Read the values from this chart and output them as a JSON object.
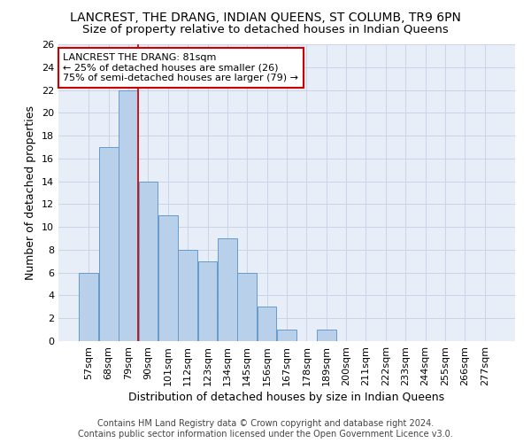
{
  "title": "LANCREST, THE DRANG, INDIAN QUEENS, ST COLUMB, TR9 6PN",
  "subtitle": "Size of property relative to detached houses in Indian Queens",
  "xlabel": "Distribution of detached houses by size in Indian Queens",
  "ylabel": "Number of detached properties",
  "footer_line1": "Contains HM Land Registry data © Crown copyright and database right 2024.",
  "footer_line2": "Contains public sector information licensed under the Open Government Licence v3.0.",
  "bar_labels": [
    "57sqm",
    "68sqm",
    "79sqm",
    "90sqm",
    "101sqm",
    "112sqm",
    "123sqm",
    "134sqm",
    "145sqm",
    "156sqm",
    "167sqm",
    "178sqm",
    "189sqm",
    "200sqm",
    "211sqm",
    "222sqm",
    "233sqm",
    "244sqm",
    "255sqm",
    "266sqm",
    "277sqm"
  ],
  "bar_values": [
    6,
    17,
    22,
    14,
    11,
    8,
    7,
    9,
    6,
    3,
    1,
    0,
    1,
    0,
    0,
    0,
    0,
    0,
    0,
    0,
    0
  ],
  "bar_color": "#b8d0ea",
  "bar_edge_color": "#6699cc",
  "vline_index": 2,
  "annotation_title": "LANCREST THE DRANG: 81sqm",
  "annotation_line1": "← 25% of detached houses are smaller (26)",
  "annotation_line2": "75% of semi-detached houses are larger (79) →",
  "annotation_box_facecolor": "#ffffff",
  "annotation_box_edgecolor": "#cc0000",
  "vline_color": "#cc0000",
  "ylim": [
    0,
    26
  ],
  "yticks": [
    0,
    2,
    4,
    6,
    8,
    10,
    12,
    14,
    16,
    18,
    20,
    22,
    24,
    26
  ],
  "grid_color": "#c8d4e8",
  "bg_color": "#e8eef8",
  "title_fontsize": 10,
  "subtitle_fontsize": 9.5,
  "axis_label_fontsize": 9,
  "tick_fontsize": 8,
  "annotation_fontsize": 8,
  "footer_fontsize": 7
}
